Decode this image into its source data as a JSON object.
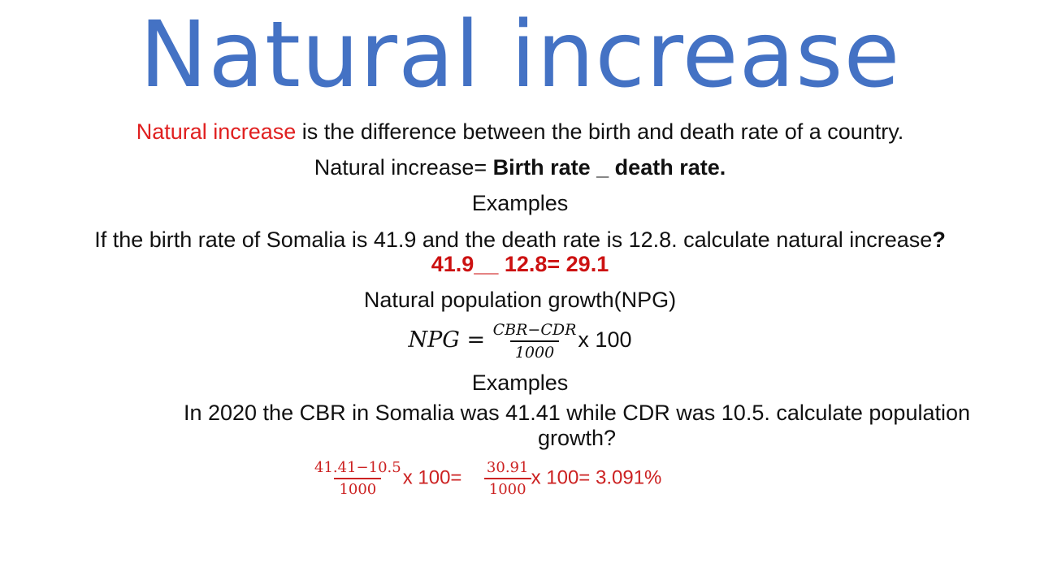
{
  "title": "Natural increase",
  "definition": {
    "term": "Natural increase",
    "rest": " is the difference between the birth and death rate of a country."
  },
  "formula1": {
    "label": "Natural increase= ",
    "expr": "Birth rate _ death rate."
  },
  "examples1_heading": "Examples",
  "question1": {
    "text": "If the birth rate of Somalia is 41.9 and the death rate is 12.8. calculate natural increase",
    "mark": "?"
  },
  "answer1": "41.9__ 12.8= 29.1",
  "npg_heading": "Natural population growth(NPG)",
  "npg_formula": {
    "lhs": "NPG =",
    "numerator": "CBR−CDR",
    "denominator": "1000",
    "suffix": "x 100"
  },
  "examples2_heading": "Examples",
  "question2": "In 2020 the CBR in Somalia was 41.41 while CDR was 10.5. calculate population growth?",
  "answer2": {
    "frac1_num": "41.41−10.5",
    "frac1_den": "1000",
    "mid": "x 100=",
    "frac2_num": "30.91",
    "frac2_den": "1000",
    "result": "x 100= 3.091%"
  }
}
